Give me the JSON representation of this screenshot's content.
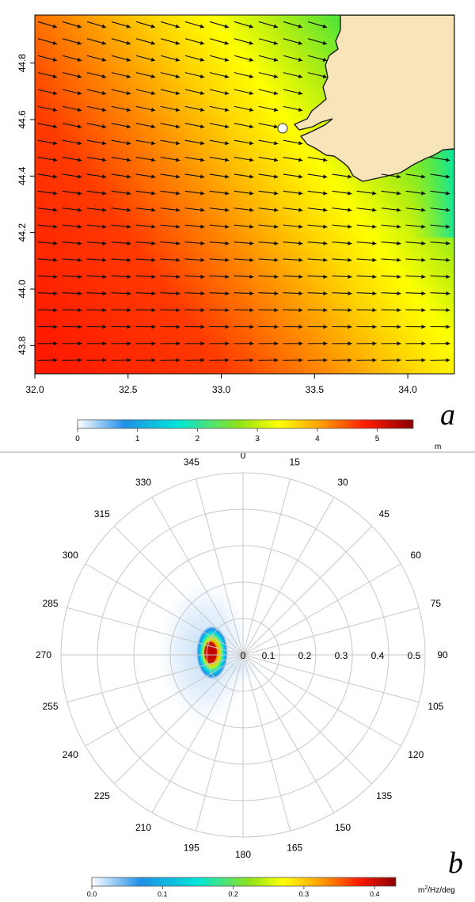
{
  "chart_data": [
    {
      "type": "heatmap",
      "panel_label": "a",
      "x_ticks": [
        "32.0",
        "32.5",
        "33.0",
        "33.5",
        "34.0"
      ],
      "y_ticks": [
        "43.8",
        "44.0",
        "44.2",
        "44.4",
        "44.6",
        "44.8"
      ],
      "xlim": [
        32.0,
        34.25
      ],
      "ylim": [
        43.7,
        44.97
      ],
      "colorbar": {
        "ticks": [
          "0",
          "1",
          "2",
          "3",
          "4",
          "5"
        ],
        "unit": "m",
        "range": [
          0,
          5.6
        ]
      },
      "colormap": [
        "#ffffff",
        "#1f8fe8",
        "#00e5d8",
        "#8fe31a",
        "#ffff00",
        "#ff9a00",
        "#ff1a00",
        "#8b0000"
      ],
      "land_color": "#f7e4b8",
      "marker": {
        "lon": 33.32,
        "lat": 44.57
      },
      "vectors": "wind-direction arrows, pointing east-south-east over the sea"
    },
    {
      "type": "heatmap",
      "polar": true,
      "panel_label": "b",
      "direction_labels": [
        "0",
        "15",
        "30",
        "45",
        "60",
        "75",
        "90",
        "105",
        "120",
        "135",
        "150",
        "165",
        "180",
        "195",
        "210",
        "225",
        "240",
        "255",
        "270",
        "285",
        "300",
        "315",
        "330",
        "345"
      ],
      "radial_labels": [
        "0",
        "0.1",
        "0.2",
        "0.3",
        "0.4",
        "0.5"
      ],
      "rlim": [
        0,
        0.5
      ],
      "grid": true,
      "colorbar": {
        "ticks": [
          "0.0",
          "0.1",
          "0.2",
          "0.3",
          "0.4"
        ],
        "unit_main": "m",
        "unit_sup": "2",
        "unit_rest": "/Hz/deg",
        "range": [
          0,
          0.43
        ]
      },
      "peak": {
        "direction": 272,
        "frequency": 0.085,
        "value": 0.4
      }
    }
  ]
}
